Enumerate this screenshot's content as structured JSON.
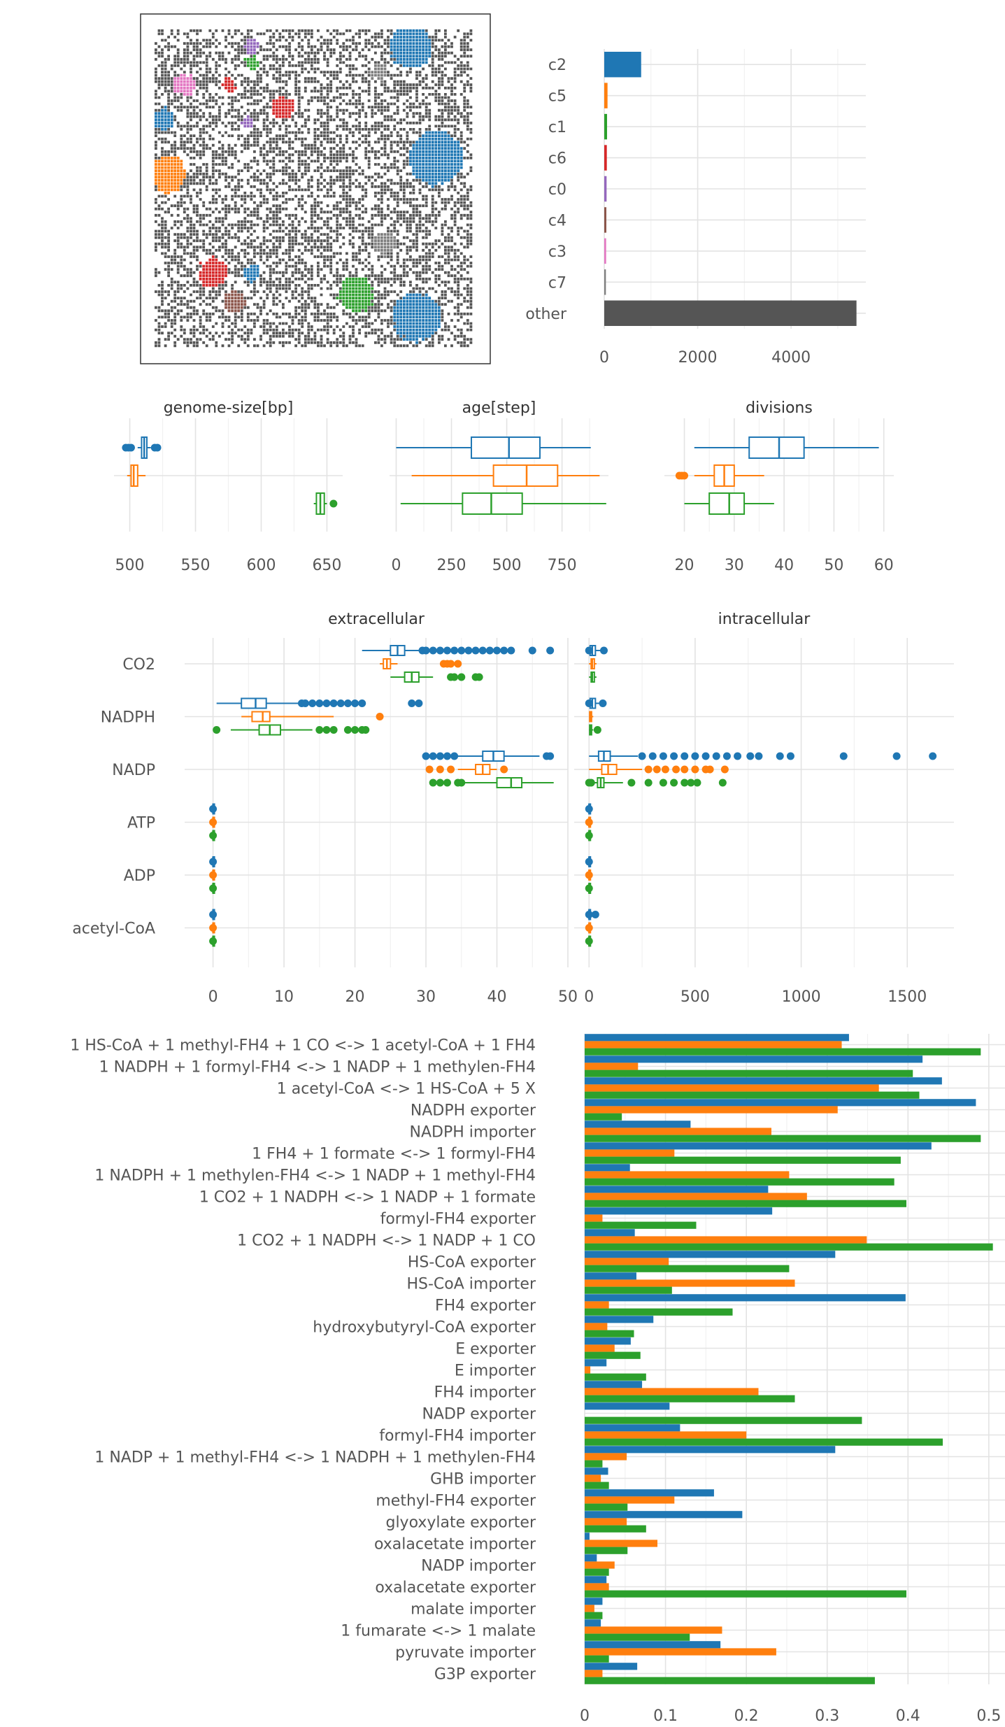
{
  "colors": {
    "c2": "#1f77b4",
    "c5": "#ff7f0e",
    "c1": "#2ca02c",
    "c6": "#d62728",
    "c0": "#9467bd",
    "c4": "#8c564b",
    "c3": "#e377c2",
    "c7": "#7f7f7f",
    "other": "#555555"
  },
  "chart_data": [
    {
      "type": "map",
      "description_note": "",
      "clusters_visible": [
        "c2",
        "c5",
        "c1",
        "c6",
        "c0",
        "c4",
        "c3",
        "c7",
        "other"
      ]
    },
    {
      "type": "bar",
      "orientation": "horizontal",
      "categories": [
        "c2",
        "c5",
        "c1",
        "c6",
        "c0",
        "c4",
        "c3",
        "c7",
        "other"
      ],
      "values": [
        790,
        70,
        60,
        55,
        50,
        45,
        40,
        35,
        5400
      ],
      "xticks": [
        "0",
        "2000",
        "4000"
      ],
      "xlim": [
        0,
        5600
      ]
    },
    {
      "type": "box",
      "title": "genome-size[bp]",
      "xticks": [
        "500",
        "550",
        "600",
        "650"
      ],
      "xlim": [
        488,
        662
      ],
      "series": [
        {
          "name": "c2",
          "min": 506,
          "q1": 509,
          "median": 511,
          "q3": 513,
          "max": 516,
          "outliers": [
            497,
            499,
            501,
            519,
            521
          ]
        },
        {
          "name": "c5",
          "min": 498,
          "q1": 501,
          "median": 503,
          "q3": 506,
          "max": 512,
          "outliers": []
        },
        {
          "name": "c1",
          "min": 640,
          "q1": 642,
          "median": 645,
          "q3": 648,
          "max": 650,
          "outliers": [
            655
          ]
        }
      ]
    },
    {
      "type": "box",
      "title": "age[step]",
      "xticks": [
        "0",
        "250",
        "500",
        "750"
      ],
      "xlim": [
        -30,
        960
      ],
      "series": [
        {
          "name": "c2",
          "min": 0,
          "q1": 340,
          "median": 510,
          "q3": 650,
          "max": 880,
          "outliers": []
        },
        {
          "name": "c5",
          "min": 70,
          "q1": 440,
          "median": 590,
          "q3": 730,
          "max": 920,
          "outliers": []
        },
        {
          "name": "c1",
          "min": 20,
          "q1": 300,
          "median": 430,
          "q3": 570,
          "max": 950,
          "outliers": []
        }
      ]
    },
    {
      "type": "box",
      "title": "divisions",
      "xticks": [
        "20",
        "30",
        "40",
        "50",
        "60"
      ],
      "xlim": [
        16,
        62
      ],
      "series": [
        {
          "name": "c2",
          "min": 22,
          "q1": 33,
          "median": 39,
          "q3": 44,
          "max": 59,
          "outliers": []
        },
        {
          "name": "c5",
          "min": 22,
          "q1": 26,
          "median": 28,
          "q3": 30,
          "max": 36,
          "outliers": [
            19,
            19.5,
            20
          ]
        },
        {
          "name": "c1",
          "min": 20,
          "q1": 25,
          "median": 29,
          "q3": 32,
          "max": 38,
          "outliers": []
        }
      ]
    },
    {
      "type": "box",
      "title": "extracellular",
      "categories": [
        "CO2",
        "NADPH",
        "NADP",
        "ATP",
        "ADP",
        "acetyl-CoA"
      ],
      "xticks": [
        "0",
        "10",
        "20",
        "30",
        "40",
        "50"
      ],
      "xlim": [
        -4,
        50
      ],
      "series": [
        {
          "name": "c2",
          "boxes": [
            {
              "cat": "CO2",
              "min": 21,
              "q1": 25,
              "median": 26,
              "q3": 27,
              "max": 29,
              "outliers": [
                29.5,
                30,
                31,
                32,
                33,
                34,
                35,
                36,
                37,
                38,
                39,
                40,
                41,
                42,
                45,
                47.5
              ]
            },
            {
              "cat": "NADPH",
              "min": 0.5,
              "q1": 4,
              "median": 6,
              "q3": 7.5,
              "max": 12,
              "outliers": [
                12.5,
                13,
                14,
                15,
                16,
                17,
                18,
                19,
                20,
                21,
                28,
                29
              ]
            },
            {
              "cat": "NADP",
              "min": 31,
              "q1": 38,
              "median": 39.5,
              "q3": 41,
              "max": 46,
              "outliers": [
                30,
                31,
                32,
                33,
                34,
                47,
                47.5
              ]
            },
            {
              "cat": "ATP",
              "min": 0,
              "q1": 0,
              "median": 0,
              "q3": 0,
              "max": 0,
              "outliers": [
                0
              ]
            },
            {
              "cat": "ADP",
              "min": 0,
              "q1": 0,
              "median": 0,
              "q3": 0,
              "max": 0,
              "outliers": [
                0
              ]
            },
            {
              "cat": "acetyl-CoA",
              "min": 0,
              "q1": 0,
              "median": 0,
              "q3": 0,
              "max": 0,
              "outliers": [
                0
              ]
            }
          ]
        },
        {
          "name": "c5",
          "boxes": [
            {
              "cat": "CO2",
              "min": 23.5,
              "q1": 24,
              "median": 24.5,
              "q3": 25,
              "max": 26,
              "outliers": [
                32.5,
                33,
                33.5,
                34.5
              ]
            },
            {
              "cat": "NADPH",
              "min": 4,
              "q1": 5.5,
              "median": 7,
              "q3": 8,
              "max": 17,
              "outliers": [
                23.5
              ]
            },
            {
              "cat": "NADP",
              "min": 34.5,
              "q1": 37,
              "median": 38,
              "q3": 39,
              "max": 40,
              "outliers": [
                30.5,
                32,
                33.5,
                41
              ]
            },
            {
              "cat": "ATP",
              "min": 0,
              "q1": 0,
              "median": 0,
              "q3": 0,
              "max": 0,
              "outliers": [
                0
              ]
            },
            {
              "cat": "ADP",
              "min": 0,
              "q1": 0,
              "median": 0,
              "q3": 0,
              "max": 0,
              "outliers": [
                0
              ]
            },
            {
              "cat": "acetyl-CoA",
              "min": 0,
              "q1": 0,
              "median": 0,
              "q3": 0,
              "max": 0,
              "outliers": [
                0
              ]
            }
          ]
        },
        {
          "name": "c1",
          "boxes": [
            {
              "cat": "CO2",
              "min": 25,
              "q1": 27,
              "median": 28,
              "q3": 29,
              "max": 31,
              "outliers": [
                33.5,
                34,
                35,
                37,
                37.5
              ]
            },
            {
              "cat": "NADPH",
              "min": 2.5,
              "q1": 6.5,
              "median": 8,
              "q3": 9.5,
              "max": 14,
              "outliers": [
                0.5,
                15,
                16,
                17,
                19,
                20,
                21,
                21.5
              ]
            },
            {
              "cat": "NADP",
              "min": 34,
              "q1": 40,
              "median": 42,
              "q3": 43.5,
              "max": 48,
              "outliers": [
                31,
                32,
                33,
                34.5,
                35
              ]
            },
            {
              "cat": "ATP",
              "min": 0,
              "q1": 0,
              "median": 0,
              "q3": 0,
              "max": 0,
              "outliers": [
                0
              ]
            },
            {
              "cat": "ADP",
              "min": 0,
              "q1": 0,
              "median": 0,
              "q3": 0,
              "max": 0,
              "outliers": [
                0
              ]
            },
            {
              "cat": "acetyl-CoA",
              "min": 0,
              "q1": 0,
              "median": 0,
              "q3": 0,
              "max": 0,
              "outliers": [
                0
              ]
            }
          ]
        }
      ]
    },
    {
      "type": "box",
      "title": "intracellular",
      "categories": [
        "CO2",
        "NADPH",
        "NADP",
        "ATP",
        "ADP",
        "acetyl-CoA"
      ],
      "xticks": [
        "0",
        "500",
        "1000",
        "1500"
      ],
      "xlim": [
        -70,
        1720
      ],
      "series": [
        {
          "name": "c2",
          "boxes": [
            {
              "cat": "CO2",
              "min": 0,
              "q1": 5,
              "median": 15,
              "q3": 30,
              "max": 60,
              "outliers": [
                0,
                70
              ]
            },
            {
              "cat": "NADPH",
              "min": 0,
              "q1": 5,
              "median": 15,
              "q3": 30,
              "max": 60,
              "outliers": [
                0,
                65
              ]
            },
            {
              "cat": "NADP",
              "min": 0,
              "q1": 45,
              "median": 70,
              "q3": 100,
              "max": 230,
              "outliers": [
                250,
                300,
                350,
                400,
                450,
                500,
                550,
                600,
                650,
                700,
                760,
                800,
                900,
                950,
                1200,
                1450,
                1620
              ]
            },
            {
              "cat": "ATP",
              "min": 0,
              "q1": 0,
              "median": 0,
              "q3": 0,
              "max": 0,
              "outliers": [
                0
              ]
            },
            {
              "cat": "ADP",
              "min": 0,
              "q1": 0,
              "median": 0,
              "q3": 0,
              "max": 0,
              "outliers": [
                0
              ]
            },
            {
              "cat": "acetyl-CoA",
              "min": 0,
              "q1": 0,
              "median": 0,
              "q3": 0,
              "max": 0,
              "outliers": [
                0,
                30
              ]
            }
          ]
        },
        {
          "name": "c5",
          "boxes": [
            {
              "cat": "CO2",
              "min": 0,
              "q1": 10,
              "median": 15,
              "q3": 25,
              "max": 35,
              "outliers": []
            },
            {
              "cat": "NADPH",
              "min": 0,
              "q1": 3,
              "median": 8,
              "q3": 12,
              "max": 20,
              "outliers": []
            },
            {
              "cat": "NADP",
              "min": 0,
              "q1": 60,
              "median": 90,
              "q3": 130,
              "max": 250,
              "outliers": [
                280,
                320,
                360,
                410,
                450,
                500,
                550,
                570,
                640
              ]
            },
            {
              "cat": "ATP",
              "min": 0,
              "q1": 0,
              "median": 0,
              "q3": 0,
              "max": 0,
              "outliers": [
                0
              ]
            },
            {
              "cat": "ADP",
              "min": 0,
              "q1": 0,
              "median": 0,
              "q3": 0,
              "max": 0,
              "outliers": [
                0
              ]
            },
            {
              "cat": "acetyl-CoA",
              "min": 0,
              "q1": 0,
              "median": 0,
              "q3": 0,
              "max": 0,
              "outliers": [
                0
              ]
            }
          ]
        },
        {
          "name": "c1",
          "boxes": [
            {
              "cat": "CO2",
              "min": 0,
              "q1": 10,
              "median": 15,
              "q3": 25,
              "max": 35,
              "outliers": []
            },
            {
              "cat": "NADPH",
              "min": 0,
              "q1": 3,
              "median": 8,
              "q3": 12,
              "max": 20,
              "outliers": [
                40
              ]
            },
            {
              "cat": "NADP",
              "min": 0,
              "q1": 40,
              "median": 55,
              "q3": 70,
              "max": 160,
              "outliers": [
                0,
                10,
                200,
                280,
                350,
                400,
                450,
                480,
                510,
                630
              ]
            },
            {
              "cat": "ATP",
              "min": 0,
              "q1": 0,
              "median": 0,
              "q3": 0,
              "max": 0,
              "outliers": [
                0
              ]
            },
            {
              "cat": "ADP",
              "min": 0,
              "q1": 0,
              "median": 0,
              "q3": 0,
              "max": 0,
              "outliers": [
                0
              ]
            },
            {
              "cat": "acetyl-CoA",
              "min": 0,
              "q1": 0,
              "median": 0,
              "q3": 0,
              "max": 0,
              "outliers": [
                0
              ]
            }
          ]
        }
      ]
    },
    {
      "type": "bar",
      "orientation": "horizontal",
      "xticks": [
        "0",
        "0.1",
        "0.2",
        "0.3",
        "0.4",
        "0.5"
      ],
      "xlim": [
        0,
        0.52
      ],
      "categories": [
        "1 HS-CoA + 1 methyl-FH4 + 1 CO <-> 1 acetyl-CoA + 1 FH4",
        "1 NADPH + 1 formyl-FH4 <-> 1 NADP + 1 methylen-FH4",
        "1 acetyl-CoA <-> 1 HS-CoA + 5 X",
        "NADPH exporter",
        "NADPH importer",
        "1 FH4 + 1 formate <-> 1 formyl-FH4",
        "1 NADPH + 1 methylen-FH4 <-> 1 NADP + 1 methyl-FH4",
        "1 CO2 + 1 NADPH <-> 1 NADP + 1 formate",
        "formyl-FH4 exporter",
        "1 CO2 + 1 NADPH <-> 1 NADP + 1 CO",
        "HS-CoA exporter",
        "HS-CoA importer",
        "FH4 exporter",
        "hydroxybutyryl-CoA exporter",
        "E exporter",
        "E importer",
        "FH4 importer",
        "NADP exporter",
        "formyl-FH4 importer",
        "1 NADP + 1 methyl-FH4 <-> 1 NADPH + 1 methylen-FH4",
        "GHB importer",
        "methyl-FH4 exporter",
        "glyoxylate exporter",
        "oxalacetate importer",
        "NADP importer",
        "oxalacetate exporter",
        "malate importer",
        "1 fumarate <-> 1 malate",
        "pyruvate importer",
        "G3P exporter"
      ],
      "series": [
        {
          "name": "c2",
          "values": [
            0.327,
            0.418,
            0.442,
            0.484,
            0.131,
            0.429,
            0.056,
            0.227,
            0.232,
            0.062,
            0.31,
            0.064,
            0.397,
            0.085,
            0.057,
            0.027,
            0.071,
            0.105,
            0.118,
            0.31,
            0.029,
            0.16,
            0.195,
            0.006,
            0.015,
            0.027,
            0.022,
            0.02,
            0.168,
            0.065
          ]
        },
        {
          "name": "c5",
          "values": [
            0.318,
            0.066,
            0.364,
            0.313,
            0.231,
            0.111,
            0.253,
            0.275,
            0.022,
            0.349,
            0.104,
            0.26,
            0.03,
            0.028,
            0.037,
            0.007,
            0.215,
            0.0,
            0.2,
            0.052,
            0.02,
            0.111,
            0.052,
            0.09,
            0.037,
            0.03,
            0.012,
            0.17,
            0.237,
            0.022
          ]
        },
        {
          "name": "c1",
          "values": [
            0.49,
            0.406,
            0.414,
            0.046,
            0.49,
            0.391,
            0.383,
            0.398,
            0.138,
            0.505,
            0.253,
            0.108,
            0.183,
            0.061,
            0.069,
            0.076,
            0.26,
            0.343,
            0.443,
            0.022,
            0.03,
            0.053,
            0.076,
            0.053,
            0.03,
            0.398,
            0.022,
            0.13,
            0.03,
            0.359
          ]
        }
      ]
    }
  ]
}
